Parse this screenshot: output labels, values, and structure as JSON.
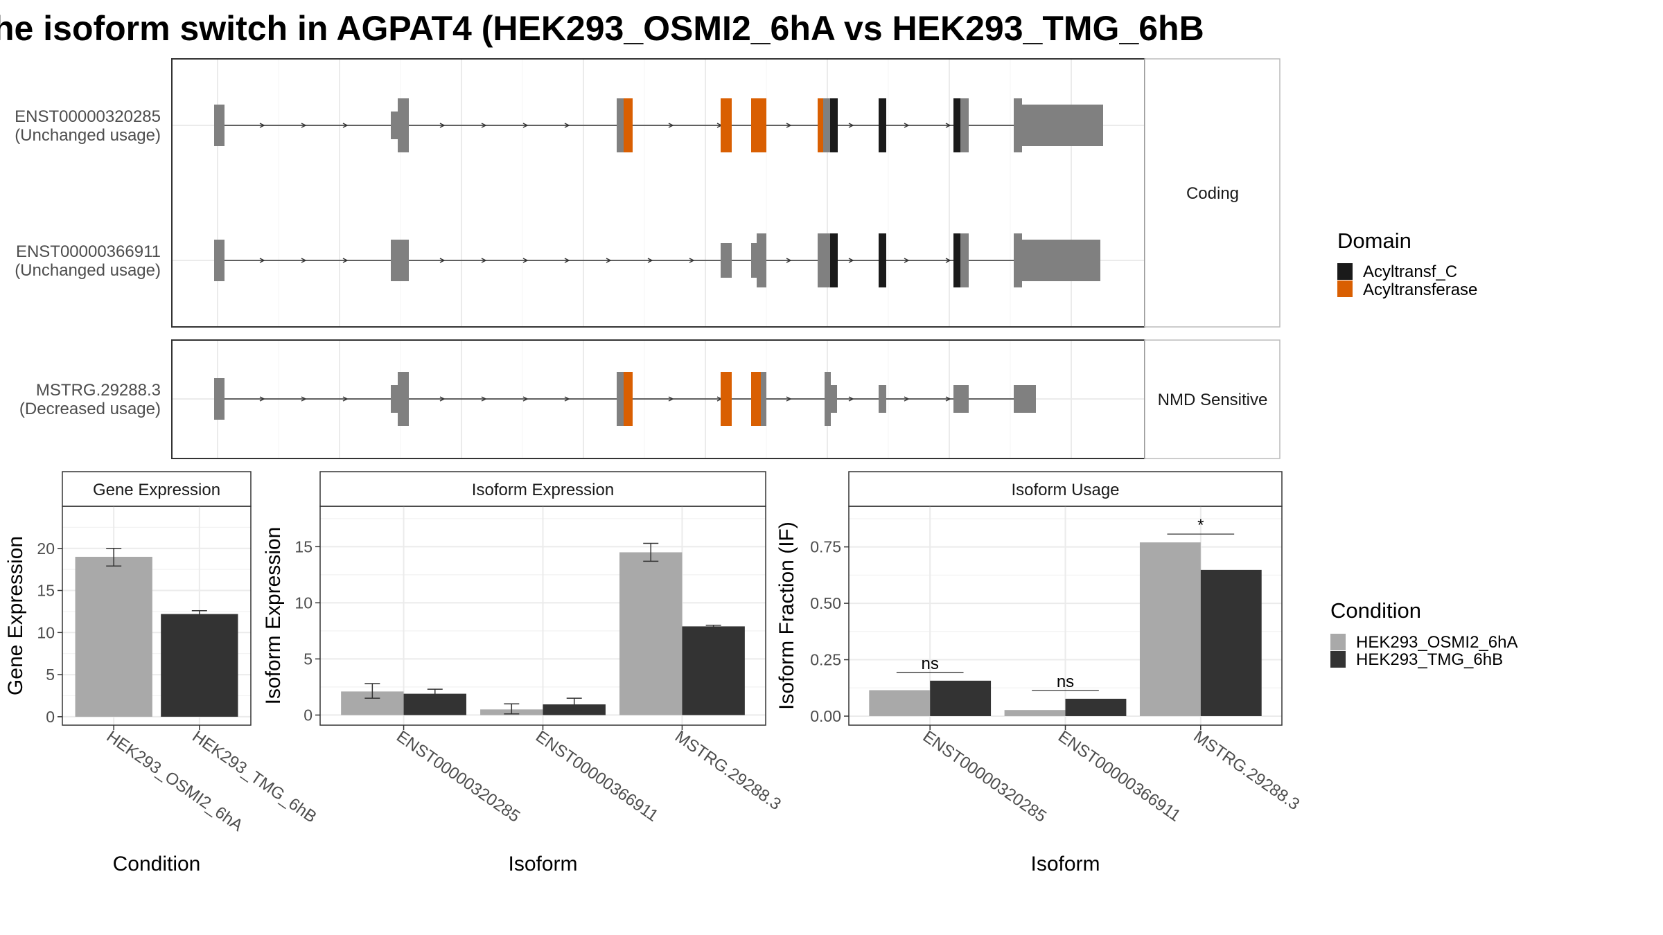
{
  "title": "he isoform switch in AGPAT4 (HEK293_OSMI2_6hA vs HEK293_TMG_6hB",
  "colors": {
    "exon": "#808080",
    "Acyltransf_C": "#1a1a1a",
    "Acyltransferase": "#d95f02",
    "cond1": "#a9a9a9",
    "cond2": "#333333"
  },
  "structure": {
    "facets": [
      "Coding",
      "NMD Sensitive"
    ],
    "isoforms": [
      {
        "id": "ENST00000320285",
        "status": "(Unchanged usage)",
        "facet": "Coding"
      },
      {
        "id": "ENST00000366911",
        "status": "(Unchanged usage)",
        "facet": "Coding"
      },
      {
        "id": "MSTRG.29288.3",
        "status": "(Decreased usage)",
        "facet": "NMD Sensitive"
      }
    ],
    "legend": {
      "title": "Domain",
      "items": [
        {
          "label": "Acyltransf_C",
          "color": "#1a1a1a"
        },
        {
          "label": "Acyltransferase",
          "color": "#d95f02"
        }
      ]
    }
  },
  "condition_legend": {
    "title": "Condition",
    "items": [
      {
        "label": "HEK293_OSMI2_6hA",
        "color": "#a9a9a9"
      },
      {
        "label": "HEK293_TMG_6hB",
        "color": "#333333"
      }
    ]
  },
  "chart_data": [
    {
      "type": "bar",
      "title": "Gene Expression",
      "xlabel": "Condition",
      "ylabel": "Gene Expression",
      "categories": [
        "HEK293_OSMI2_6hA",
        "HEK293_TMG_6hB"
      ],
      "values": [
        19.0,
        12.2
      ],
      "errors": [
        [
          17.9,
          20.0
        ],
        [
          11.9,
          12.6
        ]
      ],
      "ylim": [
        -1,
        25
      ],
      "yticks": [
        0,
        5,
        10,
        15,
        20
      ]
    },
    {
      "type": "bar",
      "title": "Isoform Expression",
      "xlabel": "Isoform",
      "ylabel": "Isoform Expression",
      "categories": [
        "ENST00000320285",
        "ENST00000366911",
        "MSTRG.29288.3"
      ],
      "series": [
        {
          "name": "HEK293_OSMI2_6hA",
          "values": [
            2.1,
            0.5,
            14.5
          ],
          "errors": [
            [
              1.5,
              2.8
            ],
            [
              0.1,
              1.0
            ],
            [
              13.7,
              15.3
            ]
          ]
        },
        {
          "name": "HEK293_TMG_6hB",
          "values": [
            1.9,
            0.95,
            7.9
          ],
          "errors": [
            [
              1.5,
              2.3
            ],
            [
              0.5,
              1.5
            ],
            [
              7.8,
              8.0
            ]
          ]
        }
      ],
      "ylim": [
        -0.9,
        18.6
      ],
      "yticks": [
        0,
        5,
        10,
        15
      ]
    },
    {
      "type": "bar",
      "title": "Isoform Usage",
      "xlabel": "Isoform",
      "ylabel": "Isoform Fraction (IF)",
      "categories": [
        "ENST00000320285",
        "ENST00000366911",
        "MSTRG.29288.3"
      ],
      "series": [
        {
          "name": "HEK293_OSMI2_6hA",
          "values": [
            0.115,
            0.027,
            0.77
          ]
        },
        {
          "name": "HEK293_TMG_6hB",
          "values": [
            0.157,
            0.077,
            0.648
          ]
        }
      ],
      "significance": [
        "ns",
        "ns",
        "*"
      ],
      "ylim": [
        -0.04,
        0.93
      ],
      "yticks": [
        0.0,
        0.25,
        0.5,
        0.75
      ],
      "ytick_labels": [
        "0.00",
        "0.25",
        "0.50",
        "0.75"
      ]
    }
  ]
}
